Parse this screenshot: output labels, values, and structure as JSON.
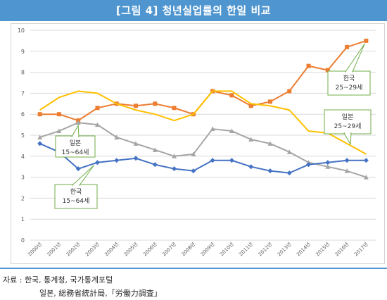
{
  "figure_title": "[그림 4] 청년실업률의 한일 비교",
  "source": {
    "line1": "자료 : 한국, 통계청, 국가통계포털",
    "line2": "일본, 総務省統計局,「労働力調査」"
  },
  "chart_data": {
    "type": "line",
    "categories": [
      "2000년",
      "2001년",
      "2002년",
      "2003년",
      "2004년",
      "2005년",
      "2006년",
      "2007년",
      "2008년",
      "2009년",
      "2010년",
      "2011년",
      "2012년",
      "2013년",
      "2014년",
      "2015년",
      "2016년",
      "2017년"
    ],
    "ylim": [
      0,
      10
    ],
    "yticks": [
      "0",
      "1",
      "2",
      "3",
      "4",
      "5",
      "6",
      "7",
      "8",
      "9",
      "10"
    ],
    "grid": true,
    "series": [
      {
        "key": "kr2529",
        "label_lines": [
          "한국",
          "25~29세"
        ],
        "color": "#ed7d31",
        "marker": "square",
        "values": [
          6.0,
          6.0,
          5.7,
          6.3,
          6.5,
          6.4,
          6.5,
          6.3,
          6.0,
          7.1,
          6.9,
          6.4,
          6.6,
          7.1,
          8.3,
          8.1,
          9.2,
          9.5
        ]
      },
      {
        "key": "jp2529",
        "label_lines": [
          "일본",
          "25~29세"
        ],
        "color": "#ffc000",
        "marker": "none",
        "values": [
          6.2,
          6.8,
          7.1,
          7.0,
          6.5,
          6.2,
          6.0,
          5.7,
          6.0,
          7.1,
          7.1,
          6.5,
          6.4,
          6.2,
          5.2,
          5.1,
          4.6,
          4.1
        ]
      },
      {
        "key": "jp1564",
        "label_lines": [
          "일본",
          "15~64세"
        ],
        "color": "#a5a5a5",
        "marker": "triangle",
        "values": [
          4.9,
          5.2,
          5.6,
          5.5,
          4.9,
          4.6,
          4.3,
          4.0,
          4.1,
          5.3,
          5.2,
          4.8,
          4.6,
          4.2,
          3.7,
          3.5,
          3.3,
          3.0
        ]
      },
      {
        "key": "kr1564",
        "label_lines": [
          "한국",
          "15~64세"
        ],
        "color": "#4472c4",
        "marker": "diamond",
        "values": [
          4.6,
          4.2,
          3.4,
          3.7,
          3.8,
          3.9,
          3.6,
          3.4,
          3.3,
          3.8,
          3.8,
          3.5,
          3.3,
          3.2,
          3.6,
          3.7,
          3.8,
          3.8
        ]
      }
    ]
  }
}
